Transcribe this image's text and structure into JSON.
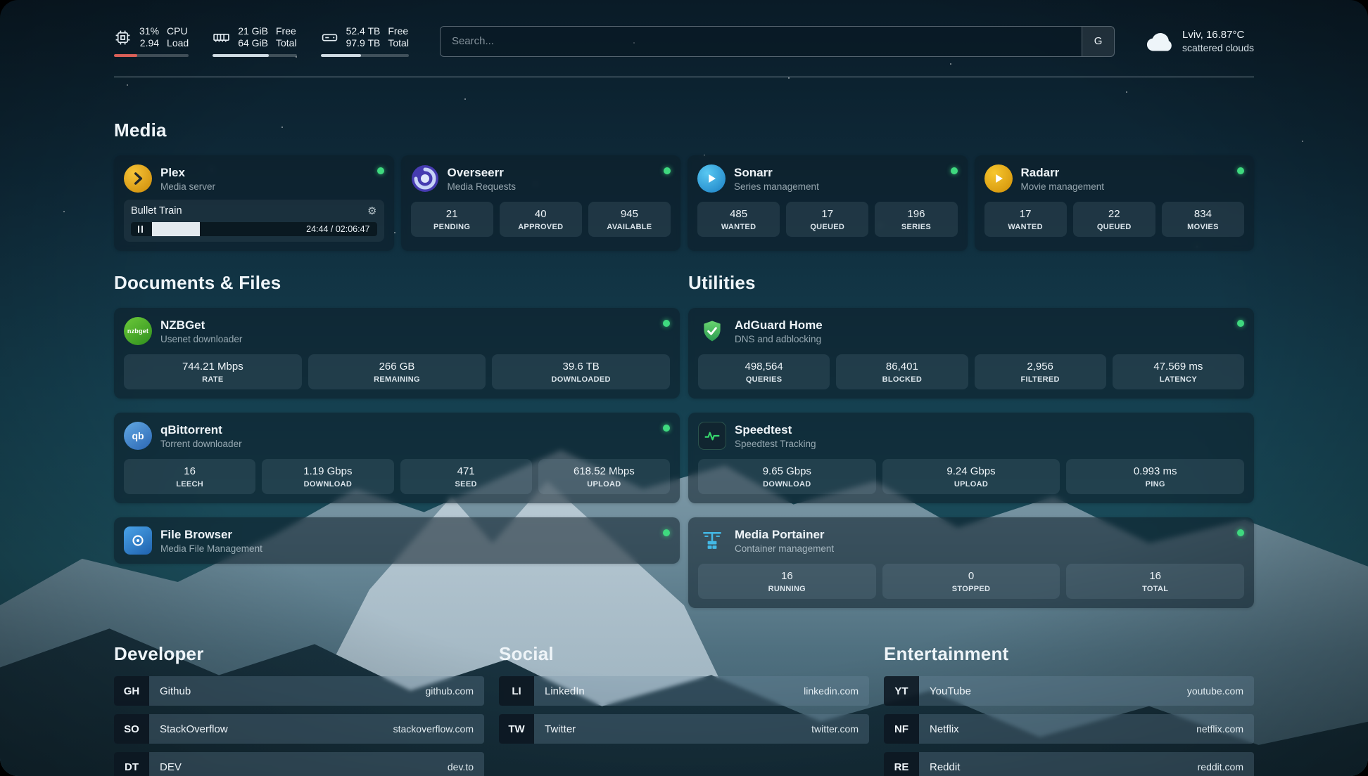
{
  "topbar": {
    "cpu": {
      "percent": "31%",
      "load": "2.94",
      "label_top": "CPU",
      "label_bottom": "Load",
      "bar_percent": 31
    },
    "memory": {
      "free": "21 GiB",
      "total": "64 GiB",
      "label_top": "Free",
      "label_bottom": "Total",
      "bar_percent": 67
    },
    "disk": {
      "free": "52.4 TB",
      "total": "97.9 TB",
      "label_top": "Free",
      "label_bottom": "Total",
      "bar_percent": 46
    },
    "search": {
      "placeholder": "Search...",
      "engine_label": "G"
    },
    "weather": {
      "location": "Lviv, 16.87°C",
      "condition": "scattered clouds"
    }
  },
  "sections": {
    "media": {
      "title": "Media"
    },
    "documents": {
      "title": "Documents & Files"
    },
    "utilities": {
      "title": "Utilities"
    },
    "developer": {
      "title": "Developer"
    },
    "social": {
      "title": "Social"
    },
    "entertainment": {
      "title": "Entertainment"
    }
  },
  "apps": {
    "plex": {
      "name": "Plex",
      "subtitle": "Media server",
      "now_playing": {
        "title": "Bullet Train",
        "time": "24:44 / 02:06:47",
        "progress_percent": 19.5
      }
    },
    "overseerr": {
      "name": "Overseerr",
      "subtitle": "Media Requests",
      "stats": [
        {
          "value": "21",
          "label": "PENDING"
        },
        {
          "value": "40",
          "label": "APPROVED"
        },
        {
          "value": "945",
          "label": "AVAILABLE"
        }
      ]
    },
    "sonarr": {
      "name": "Sonarr",
      "subtitle": "Series management",
      "stats": [
        {
          "value": "485",
          "label": "WANTED"
        },
        {
          "value": "17",
          "label": "QUEUED"
        },
        {
          "value": "196",
          "label": "SERIES"
        }
      ]
    },
    "radarr": {
      "name": "Radarr",
      "subtitle": "Movie management",
      "stats": [
        {
          "value": "17",
          "label": "WANTED"
        },
        {
          "value": "22",
          "label": "QUEUED"
        },
        {
          "value": "834",
          "label": "MOVIES"
        }
      ]
    },
    "nzbget": {
      "name": "NZBGet",
      "subtitle": "Usenet downloader",
      "icon_text": "nzbget",
      "stats": [
        {
          "value": "744.21 Mbps",
          "label": "RATE"
        },
        {
          "value": "266 GB",
          "label": "REMAINING"
        },
        {
          "value": "39.6 TB",
          "label": "DOWNLOADED"
        }
      ]
    },
    "qbittorrent": {
      "name": "qBittorrent",
      "subtitle": "Torrent downloader",
      "icon_text": "qb",
      "stats": [
        {
          "value": "16",
          "label": "LEECH"
        },
        {
          "value": "1.19 Gbps",
          "label": "DOWNLOAD"
        },
        {
          "value": "471",
          "label": "SEED"
        },
        {
          "value": "618.52 Mbps",
          "label": "UPLOAD"
        }
      ]
    },
    "filebrowser": {
      "name": "File Browser",
      "subtitle": "Media File Management"
    },
    "adguard": {
      "name": "AdGuard Home",
      "subtitle": "DNS and adblocking",
      "stats": [
        {
          "value": "498,564",
          "label": "QUERIES"
        },
        {
          "value": "86,401",
          "label": "BLOCKED"
        },
        {
          "value": "2,956",
          "label": "FILTERED"
        },
        {
          "value": "47.569 ms",
          "label": "LATENCY"
        }
      ]
    },
    "speedtest": {
      "name": "Speedtest",
      "subtitle": "Speedtest Tracking",
      "stats": [
        {
          "value": "9.65 Gbps",
          "label": "DOWNLOAD"
        },
        {
          "value": "9.24 Gbps",
          "label": "UPLOAD"
        },
        {
          "value": "0.993 ms",
          "label": "PING"
        }
      ]
    },
    "portainer": {
      "name": "Media Portainer",
      "subtitle": "Container management",
      "stats": [
        {
          "value": "16",
          "label": "RUNNING"
        },
        {
          "value": "0",
          "label": "STOPPED"
        },
        {
          "value": "16",
          "label": "TOTAL"
        }
      ]
    }
  },
  "bookmarks": {
    "developer": {
      "items": [
        {
          "abbr": "GH",
          "name": "Github",
          "url": "github.com"
        },
        {
          "abbr": "SO",
          "name": "StackOverflow",
          "url": "stackoverflow.com"
        },
        {
          "abbr": "DT",
          "name": "DEV",
          "url": "dev.to"
        }
      ]
    },
    "social": {
      "items": [
        {
          "abbr": "LI",
          "name": "LinkedIn",
          "url": "linkedin.com"
        },
        {
          "abbr": "TW",
          "name": "Twitter",
          "url": "twitter.com"
        }
      ]
    },
    "entertainment": {
      "items": [
        {
          "abbr": "YT",
          "name": "YouTube",
          "url": "youtube.com"
        },
        {
          "abbr": "NF",
          "name": "Netflix",
          "url": "netflix.com"
        },
        {
          "abbr": "RE",
          "name": "Reddit",
          "url": "reddit.com"
        }
      ]
    }
  },
  "colors": {
    "status_online": "#3fd97f",
    "cpu_bar": "#d95f57",
    "bar_fill": "#cfdbe3"
  }
}
